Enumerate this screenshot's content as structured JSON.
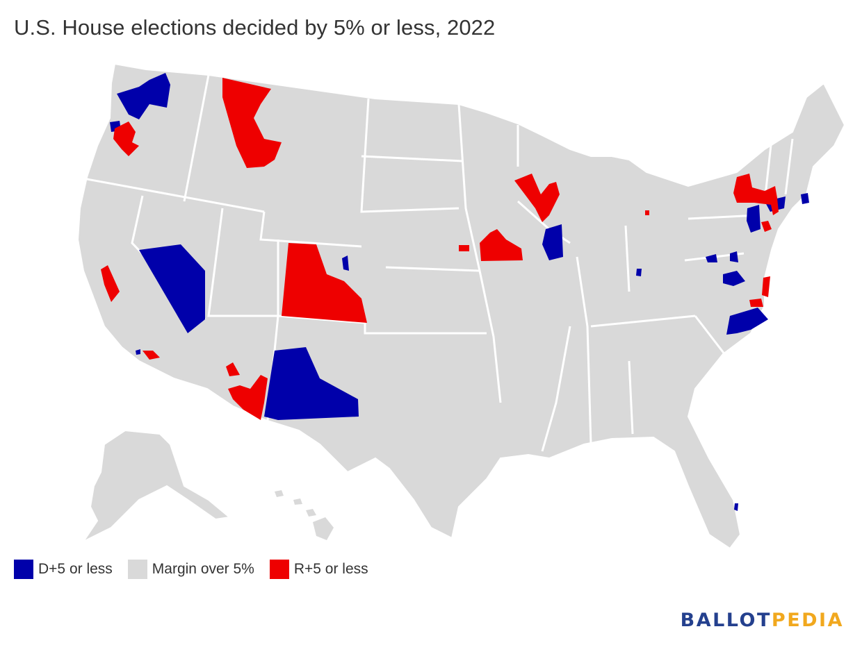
{
  "title": "U.S. House elections decided by 5% or less, 2022",
  "legend": [
    {
      "label": "D+5 or less",
      "color": "#0000aa"
    },
    {
      "label": "Margin over 5%",
      "color": "#d9d9d9"
    },
    {
      "label": "R+5 or less",
      "color": "#ee0000"
    }
  ],
  "logo": {
    "part1": "BALLOT",
    "part2": "PEDIA"
  }
}
